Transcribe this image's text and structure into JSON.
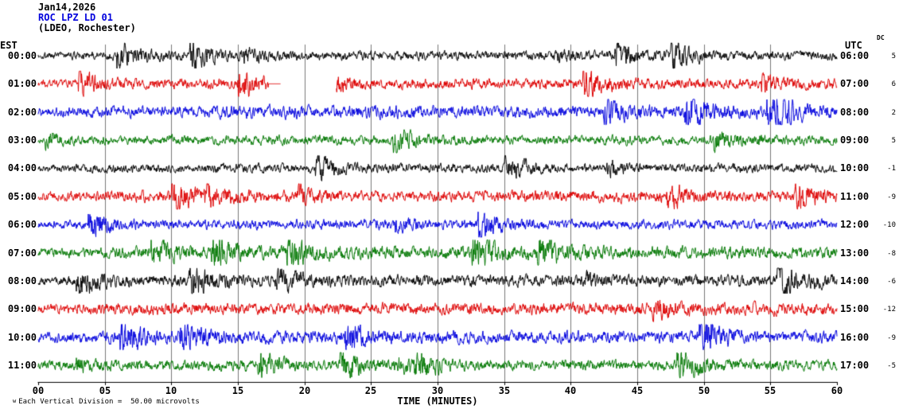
{
  "header": {
    "date": "Jan14,2026",
    "station": "ROC LPZ LD 01",
    "location": "(LDEO, Rochester)"
  },
  "axes": {
    "left_label": "EST",
    "right_label": "UTC",
    "dc_label": "DC",
    "x_label": "TIME (MINUTES)",
    "x_ticks": [
      "00",
      "05",
      "10",
      "15",
      "20",
      "25",
      "30",
      "35",
      "40",
      "45",
      "50",
      "55",
      "60"
    ]
  },
  "footer": {
    "marker": "w",
    "scale_text": "Each Vertical Division =  50.00 microvolts"
  },
  "colors": {
    "black": "#000000",
    "red": "#dd0000",
    "blue": "#0000dd",
    "green": "#007700",
    "grid": "#787878"
  },
  "chart_data": {
    "type": "line",
    "subtype": "seismogram-helicorder",
    "station": "ROC LPZ LD 01",
    "site": "(LDEO, Rochester)",
    "date": "Jan14,2026",
    "xlabel": "TIME (MINUTES)",
    "x_range_minutes": [
      0,
      60
    ],
    "x_tick_step_minutes": 5,
    "vertical_division_microvolts": 50.0,
    "trace_color_cycle": [
      "black",
      "red",
      "blue",
      "green"
    ],
    "rows": [
      {
        "est": "00:00",
        "utc": "06:00",
        "dc": "5",
        "color": "black"
      },
      {
        "est": "01:00",
        "utc": "07:00",
        "dc": "6",
        "color": "red",
        "segments": [
          {
            "from": 0,
            "to": 18.2,
            "flat_from": 17.3
          },
          {
            "from": 22.4,
            "to": 60
          }
        ]
      },
      {
        "est": "02:00",
        "utc": "08:00",
        "dc": "2",
        "color": "blue"
      },
      {
        "est": "03:00",
        "utc": "09:00",
        "dc": "5",
        "color": "green"
      },
      {
        "est": "04:00",
        "utc": "10:00",
        "dc": "-1",
        "color": "black"
      },
      {
        "est": "05:00",
        "utc": "11:00",
        "dc": "-9",
        "color": "red"
      },
      {
        "est": "06:00",
        "utc": "12:00",
        "dc": "-10",
        "color": "blue"
      },
      {
        "est": "07:00",
        "utc": "13:00",
        "dc": "-8",
        "color": "green"
      },
      {
        "est": "08:00",
        "utc": "14:00",
        "dc": "-6",
        "color": "black"
      },
      {
        "est": "09:00",
        "utc": "15:00",
        "dc": "-12",
        "color": "red"
      },
      {
        "est": "10:00",
        "utc": "16:00",
        "dc": "-9",
        "color": "blue"
      },
      {
        "est": "11:00",
        "utc": "17:00",
        "dc": "-5",
        "color": "green"
      }
    ],
    "waveform": "continuous ambient seismic noise traces; one telemetry gap on the 01:00 EST row between ~18.2 and ~22.4 minutes"
  }
}
